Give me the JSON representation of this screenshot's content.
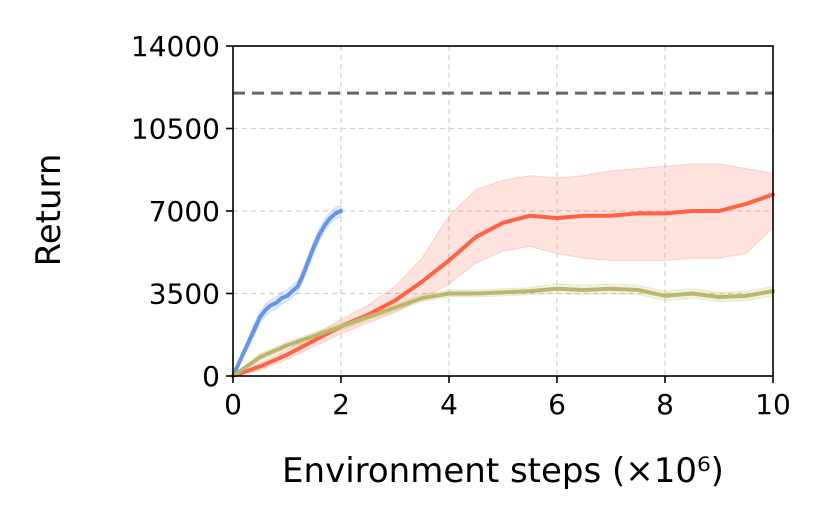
{
  "chart_data": {
    "type": "line",
    "title": "",
    "xlabel": "Environment steps (×10⁶)",
    "ylabel": "Return",
    "xlim": [
      0,
      10
    ],
    "ylim": [
      0,
      14000
    ],
    "xticks": [
      0,
      2,
      4,
      6,
      8,
      10
    ],
    "xtick_labels": [
      "0",
      "2",
      "4",
      "6",
      "8",
      "10"
    ],
    "yticks": [
      0,
      3500,
      7000,
      10500,
      14000
    ],
    "ytick_labels": [
      "0",
      "3500",
      "7000",
      "10500",
      "14000"
    ],
    "grid": true,
    "legend": "none",
    "reference_line": {
      "y": 12000,
      "style": "dashed",
      "color": "#666666"
    },
    "series": [
      {
        "color": "#6495ED",
        "x": [
          0,
          0.1,
          0.2,
          0.3,
          0.4,
          0.5,
          0.6,
          0.7,
          0.8,
          0.9,
          1.0,
          1.1,
          1.2,
          1.3,
          1.4,
          1.5,
          1.6,
          1.7,
          1.8,
          1.9,
          2.0
        ],
        "y": [
          0,
          500,
          1000,
          1500,
          2000,
          2500,
          2800,
          3000,
          3100,
          3300,
          3400,
          3600,
          3800,
          4300,
          4900,
          5500,
          6000,
          6400,
          6700,
          6900,
          7000
        ],
        "lower": [
          0,
          400,
          850,
          1300,
          1750,
          2250,
          2550,
          2750,
          2850,
          3050,
          3150,
          3350,
          3550,
          4050,
          4650,
          5250,
          5750,
          6150,
          6450,
          6650,
          6750
        ],
        "upper": [
          0,
          600,
          1150,
          1700,
          2250,
          2750,
          3050,
          3250,
          3350,
          3550,
          3650,
          3850,
          4050,
          4550,
          5150,
          5750,
          6250,
          6650,
          6950,
          7150,
          7250
        ]
      },
      {
        "color": "#FF6347",
        "x": [
          0,
          0.5,
          1,
          1.5,
          2,
          2.5,
          3,
          3.5,
          4,
          4.5,
          5,
          5.5,
          6,
          6.5,
          7,
          7.5,
          8,
          8.5,
          9,
          9.5,
          10
        ],
        "y": [
          0,
          400,
          900,
          1500,
          2100,
          2600,
          3200,
          4000,
          4900,
          5900,
          6500,
          6800,
          6700,
          6800,
          6800,
          6900,
          6900,
          7000,
          7000,
          7300,
          7700
        ],
        "lower": [
          0,
          250,
          700,
          1250,
          1800,
          2250,
          2700,
          3300,
          3900,
          4800,
          5300,
          5500,
          5200,
          5000,
          4900,
          4900,
          4900,
          5000,
          5000,
          5200,
          6300
        ],
        "upper": [
          0,
          550,
          1100,
          1750,
          2400,
          3000,
          3800,
          5000,
          6800,
          7900,
          8300,
          8500,
          8400,
          8500,
          8700,
          8800,
          8900,
          9000,
          9000,
          8800,
          8600
        ]
      },
      {
        "color": "#BDB76B",
        "x": [
          0,
          0.5,
          1,
          1.5,
          2,
          2.5,
          3,
          3.5,
          4,
          4.5,
          5,
          5.5,
          6,
          6.5,
          7,
          7.5,
          8,
          8.5,
          9,
          9.5,
          10
        ],
        "y": [
          0,
          800,
          1300,
          1700,
          2100,
          2500,
          2900,
          3300,
          3500,
          3500,
          3550,
          3600,
          3700,
          3650,
          3700,
          3650,
          3400,
          3500,
          3350,
          3400,
          3600
        ],
        "lower": [
          0,
          650,
          1150,
          1550,
          1950,
          2350,
          2750,
          3150,
          3350,
          3350,
          3400,
          3450,
          3500,
          3450,
          3500,
          3450,
          3200,
          3300,
          3150,
          3200,
          3400
        ],
        "upper": [
          0,
          950,
          1450,
          1850,
          2250,
          2650,
          3050,
          3450,
          3650,
          3650,
          3700,
          3750,
          3900,
          3850,
          3900,
          3850,
          3600,
          3700,
          3550,
          3600,
          3800
        ]
      }
    ]
  }
}
